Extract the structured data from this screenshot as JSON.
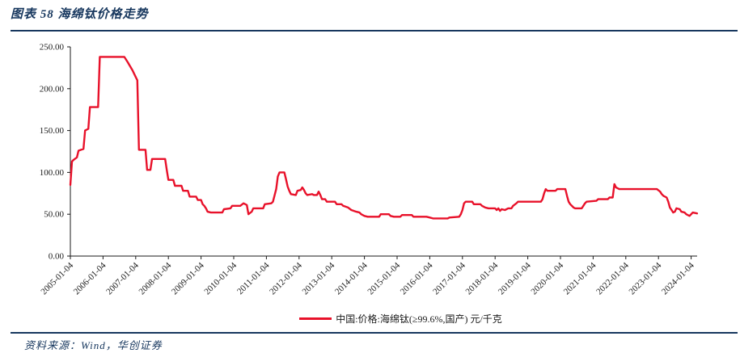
{
  "header": {
    "title": "图表 58  海绵钛价格走势"
  },
  "footer": {
    "source": "资料来源：Wind，华创证券"
  },
  "colors": {
    "navy": "#17375E",
    "line_red": "#E8112A",
    "axis": "#1a1a1a"
  },
  "legend": {
    "label": "中国:价格:海绵钛(≥99.6%,国产) 元/千克"
  },
  "chart_data": {
    "type": "line",
    "title": "海绵钛价格走势",
    "xlabel": "",
    "ylabel": "",
    "unit": "元/千克",
    "ylim": [
      0,
      250
    ],
    "grid": false,
    "legend_position": "bottom",
    "y_tick_labels": [
      "0.00",
      "50.00",
      "100.00",
      "150.00",
      "200.00",
      "250.00"
    ],
    "x_tick_labels": [
      "2005-01-04",
      "2006-01-04",
      "2007-01-04",
      "2008-01-04",
      "2009-01-04",
      "2010-01-04",
      "2011-01-04",
      "2012-01-04",
      "2013-01-04",
      "2014-01-04",
      "2015-01-04",
      "2016-01-04",
      "2017-01-04",
      "2018-01-04",
      "2019-01-04",
      "2020-01-04",
      "2021-01-04",
      "2022-01-04",
      "2023-01-04",
      "2024-01-04"
    ],
    "series": [
      {
        "name": "中国:价格:海绵钛(≥99.6%,国产) 元/千克",
        "color": "#E8112A",
        "points": [
          [
            2005.0,
            85
          ],
          [
            2005.05,
            113
          ],
          [
            2005.1,
            115
          ],
          [
            2005.2,
            118
          ],
          [
            2005.25,
            126
          ],
          [
            2005.4,
            128
          ],
          [
            2005.45,
            150
          ],
          [
            2005.55,
            152
          ],
          [
            2005.6,
            178
          ],
          [
            2005.85,
            178
          ],
          [
            2005.9,
            238
          ],
          [
            2006.65,
            238
          ],
          [
            2006.75,
            232
          ],
          [
            2006.9,
            222
          ],
          [
            2007.0,
            214
          ],
          [
            2007.05,
            210
          ],
          [
            2007.1,
            127
          ],
          [
            2007.3,
            127
          ],
          [
            2007.35,
            103
          ],
          [
            2007.45,
            103
          ],
          [
            2007.5,
            116
          ],
          [
            2007.9,
            116
          ],
          [
            2007.95,
            103
          ],
          [
            2008.0,
            91
          ],
          [
            2008.15,
            91
          ],
          [
            2008.2,
            84
          ],
          [
            2008.4,
            84
          ],
          [
            2008.45,
            78
          ],
          [
            2008.6,
            78
          ],
          [
            2008.65,
            71
          ],
          [
            2008.85,
            71
          ],
          [
            2008.9,
            67
          ],
          [
            2009.0,
            67
          ],
          [
            2009.05,
            62
          ],
          [
            2009.1,
            60
          ],
          [
            2009.15,
            57
          ],
          [
            2009.2,
            53
          ],
          [
            2009.3,
            52
          ],
          [
            2009.65,
            52
          ],
          [
            2009.7,
            56
          ],
          [
            2009.9,
            57
          ],
          [
            2009.95,
            60
          ],
          [
            2010.2,
            60
          ],
          [
            2010.3,
            63
          ],
          [
            2010.4,
            61
          ],
          [
            2010.45,
            50
          ],
          [
            2010.55,
            53
          ],
          [
            2010.6,
            57
          ],
          [
            2010.9,
            57
          ],
          [
            2010.95,
            62
          ],
          [
            2011.15,
            63
          ],
          [
            2011.2,
            65
          ],
          [
            2011.3,
            80
          ],
          [
            2011.35,
            95
          ],
          [
            2011.4,
            100
          ],
          [
            2011.55,
            100
          ],
          [
            2011.6,
            92
          ],
          [
            2011.65,
            83
          ],
          [
            2011.7,
            78
          ],
          [
            2011.75,
            74
          ],
          [
            2011.9,
            73
          ],
          [
            2011.95,
            78
          ],
          [
            2012.05,
            79
          ],
          [
            2012.1,
            82
          ],
          [
            2012.15,
            79
          ],
          [
            2012.2,
            75
          ],
          [
            2012.25,
            73
          ],
          [
            2012.4,
            74
          ],
          [
            2012.45,
            73
          ],
          [
            2012.55,
            73
          ],
          [
            2012.6,
            77
          ],
          [
            2012.65,
            73
          ],
          [
            2012.7,
            68
          ],
          [
            2012.8,
            68
          ],
          [
            2012.85,
            65
          ],
          [
            2013.1,
            65
          ],
          [
            2013.15,
            62
          ],
          [
            2013.3,
            62
          ],
          [
            2013.35,
            60
          ],
          [
            2013.5,
            58
          ],
          [
            2013.6,
            55
          ],
          [
            2013.75,
            53
          ],
          [
            2013.85,
            52
          ],
          [
            2013.9,
            50
          ],
          [
            2014.0,
            48
          ],
          [
            2014.1,
            47
          ],
          [
            2014.45,
            47
          ],
          [
            2014.5,
            50
          ],
          [
            2014.75,
            50
          ],
          [
            2014.8,
            48
          ],
          [
            2014.9,
            47
          ],
          [
            2015.1,
            47
          ],
          [
            2015.15,
            49
          ],
          [
            2015.45,
            49
          ],
          [
            2015.5,
            47
          ],
          [
            2015.9,
            47
          ],
          [
            2016.0,
            46
          ],
          [
            2016.1,
            45
          ],
          [
            2016.55,
            45
          ],
          [
            2016.6,
            46
          ],
          [
            2016.9,
            47
          ],
          [
            2016.95,
            50
          ],
          [
            2017.0,
            55
          ],
          [
            2017.05,
            63
          ],
          [
            2017.1,
            65
          ],
          [
            2017.3,
            65
          ],
          [
            2017.35,
            62
          ],
          [
            2017.55,
            62
          ],
          [
            2017.6,
            60
          ],
          [
            2017.7,
            58
          ],
          [
            2017.8,
            57
          ],
          [
            2018.0,
            57
          ],
          [
            2018.05,
            55
          ],
          [
            2018.1,
            57
          ],
          [
            2018.15,
            54
          ],
          [
            2018.2,
            56
          ],
          [
            2018.3,
            55
          ],
          [
            2018.4,
            57
          ],
          [
            2018.5,
            57
          ],
          [
            2018.55,
            60
          ],
          [
            2018.65,
            63
          ],
          [
            2018.7,
            65
          ],
          [
            2019.4,
            65
          ],
          [
            2019.45,
            68
          ],
          [
            2019.5,
            75
          ],
          [
            2019.55,
            80
          ],
          [
            2019.6,
            78
          ],
          [
            2019.85,
            78
          ],
          [
            2019.9,
            80
          ],
          [
            2020.15,
            80
          ],
          [
            2020.2,
            72
          ],
          [
            2020.25,
            65
          ],
          [
            2020.3,
            62
          ],
          [
            2020.4,
            58
          ],
          [
            2020.45,
            57
          ],
          [
            2020.65,
            57
          ],
          [
            2020.7,
            60
          ],
          [
            2020.75,
            63
          ],
          [
            2020.8,
            65
          ],
          [
            2021.1,
            66
          ],
          [
            2021.15,
            68
          ],
          [
            2021.45,
            68
          ],
          [
            2021.5,
            70
          ],
          [
            2021.6,
            70
          ],
          [
            2021.65,
            86
          ],
          [
            2021.7,
            82
          ],
          [
            2021.75,
            81
          ],
          [
            2021.8,
            80
          ],
          [
            2022.95,
            80
          ],
          [
            2023.05,
            77
          ],
          [
            2023.1,
            74
          ],
          [
            2023.15,
            72
          ],
          [
            2023.25,
            70
          ],
          [
            2023.3,
            65
          ],
          [
            2023.35,
            58
          ],
          [
            2023.4,
            55
          ],
          [
            2023.45,
            52
          ],
          [
            2023.5,
            53
          ],
          [
            2023.55,
            57
          ],
          [
            2023.65,
            56
          ],
          [
            2023.7,
            53
          ],
          [
            2023.8,
            52
          ],
          [
            2023.85,
            50
          ],
          [
            2023.95,
            48
          ],
          [
            2024.0,
            50
          ],
          [
            2024.05,
            52
          ],
          [
            2024.18,
            51
          ]
        ]
      }
    ]
  }
}
